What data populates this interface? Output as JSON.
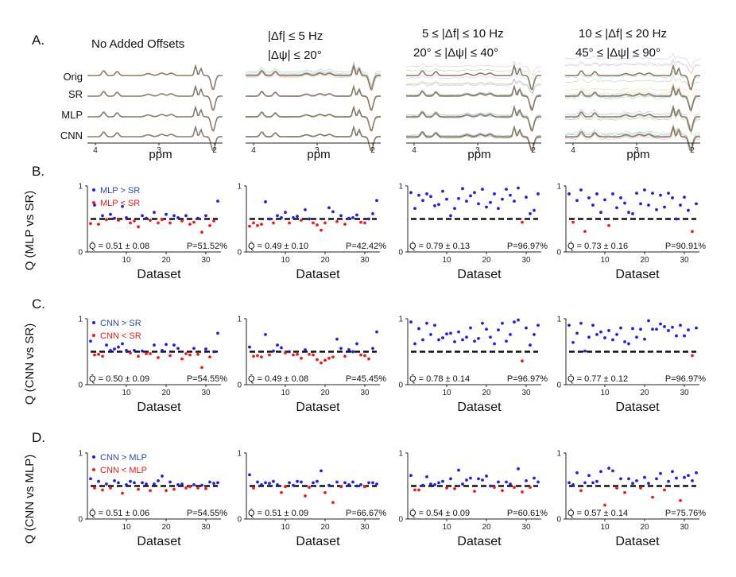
{
  "section_labels": [
    "A.",
    "B.",
    "C.",
    "D."
  ],
  "colors": {
    "above": "#1f1fe6",
    "below": "#ee1c1c",
    "legend_above_text": "#2b4a9c",
    "legend_below_text": "#e01b1b",
    "dashed": "#111111",
    "spectrum": "#8a7a6a"
  },
  "panel_a": {
    "column_titles": [
      {
        "line1": "No Added Offsets",
        "line2": ""
      },
      {
        "line1": "|Δf| ≤ 5 Hz",
        "line2": "|Δψ| ≤ 20°"
      },
      {
        "line1": "5 ≤ |Δf| ≤ 10 Hz",
        "line2": "20° ≤ |Δψ| ≤ 40°"
      },
      {
        "line1": "10 ≤ |Δf| ≤ 20 Hz",
        "line2": "45° ≤ |Δψ| ≤ 90°"
      }
    ],
    "row_labels": [
      "Orig",
      "SR",
      "MLP",
      "CNN"
    ],
    "x_ticks": [
      "4",
      "3",
      "2"
    ],
    "x_label": "ppm",
    "noise_level": [
      0.0,
      0.35,
      1.0,
      1.7
    ]
  },
  "scatter_axis": {
    "x_label": "Dataset",
    "x_ticks": [
      "10",
      "20",
      "30"
    ],
    "y_ticks": [
      "0",
      "1"
    ]
  },
  "chart_data": [
    {
      "type": "scatter",
      "row": "B",
      "ylabel": "Q (MLP vs SR)",
      "legend": [
        "MLP > SR",
        "MLP < SR"
      ],
      "ylim": [
        0,
        1
      ],
      "reference_line": 0.5,
      "panels": [
        {
          "stat": "Q̄ = 0.51 ± 0.08",
          "p": "P=51.52%",
          "values": [
            0.43,
            0.71,
            0.42,
            0.55,
            0.49,
            0.57,
            0.51,
            0.48,
            0.69,
            0.52,
            0.44,
            0.47,
            0.38,
            0.55,
            0.51,
            0.48,
            0.6,
            0.44,
            0.49,
            0.57,
            0.44,
            0.55,
            0.52,
            0.47,
            0.55,
            0.42,
            0.45,
            0.51,
            0.3,
            0.55,
            0.4,
            0.47,
            0.77
          ]
        },
        {
          "stat": "Q̄ = 0.49 ± 0.10",
          "p": "P=42.42%",
          "values": [
            0.39,
            0.44,
            0.4,
            0.42,
            0.76,
            0.5,
            0.44,
            0.55,
            0.52,
            0.6,
            0.44,
            0.52,
            0.54,
            0.48,
            0.64,
            0.5,
            0.44,
            0.41,
            0.33,
            0.44,
            0.67,
            0.61,
            0.46,
            0.55,
            0.42,
            0.51,
            0.52,
            0.56,
            0.45,
            0.44,
            0.5,
            0.58,
            0.78
          ]
        },
        {
          "stat": "Q̄ = 0.79 ± 0.13",
          "p": "P=96.97%",
          "values": [
            0.9,
            0.66,
            0.86,
            0.78,
            0.88,
            0.84,
            0.7,
            0.72,
            0.92,
            0.8,
            0.55,
            0.66,
            0.81,
            0.96,
            0.77,
            0.85,
            0.9,
            0.73,
            0.95,
            0.68,
            0.75,
            0.88,
            0.66,
            0.8,
            0.95,
            0.86,
            0.77,
            0.97,
            0.45,
            0.83,
            0.58,
            0.63,
            0.88
          ]
        },
        {
          "stat": "Q̄ = 0.73 ± 0.16",
          "p": "P=90.91%",
          "values": [
            0.88,
            0.45,
            0.78,
            0.94,
            0.31,
            0.82,
            0.71,
            0.88,
            0.6,
            0.79,
            0.4,
            0.88,
            0.67,
            0.82,
            0.74,
            0.6,
            0.58,
            0.89,
            0.73,
            0.94,
            0.71,
            0.89,
            0.64,
            0.86,
            0.68,
            0.89,
            0.82,
            0.5,
            0.71,
            0.83,
            0.63,
            0.31,
            0.73
          ]
        }
      ]
    },
    {
      "type": "scatter",
      "row": "C",
      "ylabel": "Q (CNN vs SR)",
      "legend": [
        "CNN > SR",
        "CNN < SR"
      ],
      "ylim": [
        0,
        1
      ],
      "reference_line": 0.5,
      "panels": [
        {
          "stat": "Q̄ = 0.50 ± 0.09",
          "p": "P=54.55%",
          "values": [
            0.66,
            0.45,
            0.46,
            0.43,
            0.6,
            0.52,
            0.54,
            0.57,
            0.62,
            0.52,
            0.48,
            0.52,
            0.43,
            0.51,
            0.47,
            0.47,
            0.6,
            0.41,
            0.52,
            0.61,
            0.44,
            0.6,
            0.55,
            0.39,
            0.47,
            0.45,
            0.55,
            0.46,
            0.26,
            0.54,
            0.42,
            0.5,
            0.78
          ]
        },
        {
          "stat": "Q̄ = 0.49 ± 0.08",
          "p": "P=45.45%",
          "values": [
            0.57,
            0.43,
            0.44,
            0.42,
            0.76,
            0.45,
            0.51,
            0.6,
            0.56,
            0.48,
            0.5,
            0.45,
            0.46,
            0.4,
            0.53,
            0.46,
            0.45,
            0.38,
            0.33,
            0.37,
            0.4,
            0.42,
            0.69,
            0.55,
            0.43,
            0.53,
            0.5,
            0.62,
            0.45,
            0.44,
            0.39,
            0.55,
            0.8
          ]
        },
        {
          "stat": "Q̄ = 0.78 ± 0.14",
          "p": "P=96.97%",
          "values": [
            0.95,
            0.62,
            0.85,
            0.68,
            0.93,
            0.76,
            0.9,
            0.68,
            0.71,
            0.77,
            0.78,
            0.65,
            0.8,
            0.68,
            0.72,
            0.86,
            0.66,
            0.7,
            0.93,
            0.84,
            0.72,
            0.62,
            0.83,
            0.93,
            0.66,
            0.76,
            0.95,
            0.98,
            0.36,
            0.86,
            0.6,
            0.76,
            0.9
          ]
        },
        {
          "stat": "Q̄ = 0.77 ± 0.12",
          "p": "P=96.97%",
          "values": [
            0.9,
            0.64,
            0.78,
            0.93,
            0.51,
            0.72,
            0.9,
            0.76,
            0.8,
            0.71,
            0.82,
            0.68,
            0.76,
            0.86,
            0.65,
            0.62,
            0.85,
            0.72,
            0.84,
            0.69,
            0.97,
            0.84,
            0.84,
            0.92,
            0.88,
            0.82,
            0.87,
            0.74,
            0.9,
            0.74,
            0.83,
            0.44,
            0.86
          ]
        }
      ]
    },
    {
      "type": "scatter",
      "row": "D",
      "ylabel": "Q (CNN vs MLP)",
      "legend": [
        "CNN > MLP",
        "CNN < MLP"
      ],
      "ylim": [
        0,
        1
      ],
      "reference_line": 0.5,
      "panels": [
        {
          "stat": "Q̄ = 0.51 ± 0.06",
          "p": "P=54.55%",
          "values": [
            0.61,
            0.47,
            0.57,
            0.44,
            0.53,
            0.47,
            0.58,
            0.55,
            0.39,
            0.52,
            0.57,
            0.55,
            0.45,
            0.55,
            0.53,
            0.43,
            0.53,
            0.58,
            0.65,
            0.43,
            0.56,
            0.45,
            0.52,
            0.53,
            0.47,
            0.49,
            0.52,
            0.47,
            0.51,
            0.46,
            0.56,
            0.54,
            0.55
          ]
        },
        {
          "stat": "Q̄ = 0.51 ± 0.09",
          "p": "P=66.67%",
          "values": [
            0.67,
            0.47,
            0.56,
            0.52,
            0.55,
            0.54,
            0.57,
            0.52,
            0.4,
            0.49,
            0.55,
            0.51,
            0.57,
            0.56,
            0.35,
            0.48,
            0.55,
            0.57,
            0.73,
            0.4,
            0.51,
            0.25,
            0.56,
            0.49,
            0.55,
            0.52,
            0.56,
            0.5,
            0.52,
            0.49,
            0.55,
            0.55,
            0.53
          ]
        },
        {
          "stat": "Q̄ = 0.54 ± 0.09",
          "p": "P=60.61%",
          "values": [
            0.66,
            0.44,
            0.44,
            0.51,
            0.64,
            0.53,
            0.52,
            0.55,
            0.57,
            0.47,
            0.61,
            0.46,
            0.74,
            0.53,
            0.59,
            0.62,
            0.42,
            0.61,
            0.59,
            0.65,
            0.5,
            0.48,
            0.56,
            0.43,
            0.56,
            0.53,
            0.48,
            0.76,
            0.41,
            0.58,
            0.48,
            0.62,
            0.56
          ]
        },
        {
          "stat": "Q̄ = 0.57 ± 0.14",
          "p": "P=75.76%",
          "values": [
            0.55,
            0.52,
            0.7,
            0.43,
            0.55,
            0.66,
            0.55,
            0.57,
            0.72,
            0.21,
            0.77,
            0.73,
            0.47,
            0.61,
            0.4,
            0.61,
            0.54,
            0.58,
            0.47,
            0.63,
            0.54,
            0.33,
            0.61,
            0.69,
            0.44,
            0.57,
            0.72,
            0.62,
            0.28,
            0.63,
            0.66,
            0.58,
            0.7
          ]
        }
      ]
    }
  ]
}
